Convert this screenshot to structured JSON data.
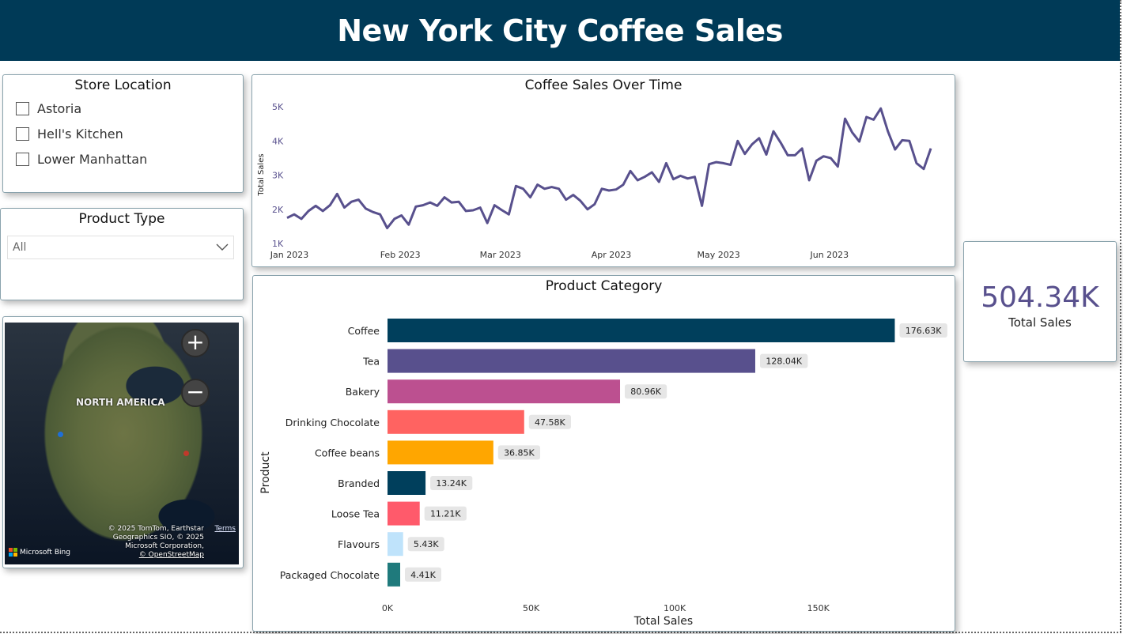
{
  "header": {
    "title": "New York City Coffee Sales"
  },
  "store_location": {
    "title": "Store Location",
    "items": [
      {
        "label": "Astoria",
        "checked": false
      },
      {
        "label": "Hell's Kitchen",
        "checked": false
      },
      {
        "label": "Lower Manhattan",
        "checked": false
      }
    ]
  },
  "product_type": {
    "title": "Product Type",
    "selected": "All"
  },
  "map": {
    "region_label": "NORTH AMERICA",
    "zoom_in": "+",
    "zoom_out": "−",
    "attribution_lines": [
      "© 2025 TomTom, Earthstar",
      "Geographics SIO, © 2025",
      "Microsoft Corporation,",
      "© OpenStreetMap"
    ],
    "terms": "Terms",
    "provider": "Microsoft Bing"
  },
  "kpi": {
    "value": "504.34K",
    "label": "Total Sales",
    "color": "#58508d"
  },
  "chart_data": [
    {
      "type": "line",
      "title": "Coffee Sales Over Time",
      "ylabel": "Total Sales",
      "xlabel": "",
      "ylim": [
        1000,
        5000
      ],
      "yticks": [
        "1K",
        "2K",
        "3K",
        "4K",
        "5K"
      ],
      "xticks": [
        "Jan 2023",
        "Feb 2023",
        "Mar 2023",
        "Apr 2023",
        "May 2023",
        "Jun 2023"
      ],
      "xlim": [
        "2023-01-01",
        "2023-06-30"
      ],
      "color": "#58508d",
      "grid": false,
      "points": [
        [
          "2023-01-01",
          1750
        ],
        [
          "2023-01-03",
          1850
        ],
        [
          "2023-01-05",
          1720
        ],
        [
          "2023-01-07",
          1950
        ],
        [
          "2023-01-09",
          2100
        ],
        [
          "2023-01-11",
          1950
        ],
        [
          "2023-01-13",
          2120
        ],
        [
          "2023-01-15",
          2450
        ],
        [
          "2023-01-17",
          2050
        ],
        [
          "2023-01-19",
          2220
        ],
        [
          "2023-01-21",
          2280
        ],
        [
          "2023-01-23",
          2020
        ],
        [
          "2023-01-25",
          1920
        ],
        [
          "2023-01-27",
          1850
        ],
        [
          "2023-01-29",
          1450
        ],
        [
          "2023-01-31",
          1720
        ],
        [
          "2023-02-02",
          1820
        ],
        [
          "2023-02-04",
          1550
        ],
        [
          "2023-02-06",
          2080
        ],
        [
          "2023-02-08",
          2120
        ],
        [
          "2023-02-10",
          2200
        ],
        [
          "2023-02-12",
          2100
        ],
        [
          "2023-02-14",
          2350
        ],
        [
          "2023-02-16",
          2200
        ],
        [
          "2023-02-18",
          2220
        ],
        [
          "2023-02-20",
          1950
        ],
        [
          "2023-02-22",
          1970
        ],
        [
          "2023-02-24",
          2050
        ],
        [
          "2023-02-26",
          1600
        ],
        [
          "2023-02-28",
          2120
        ],
        [
          "2023-03-02",
          1980
        ],
        [
          "2023-03-04",
          1850
        ],
        [
          "2023-03-06",
          2680
        ],
        [
          "2023-03-08",
          2600
        ],
        [
          "2023-03-10",
          2350
        ],
        [
          "2023-03-12",
          2720
        ],
        [
          "2023-03-14",
          2600
        ],
        [
          "2023-03-16",
          2650
        ],
        [
          "2023-03-18",
          2600
        ],
        [
          "2023-03-20",
          2280
        ],
        [
          "2023-03-22",
          2420
        ],
        [
          "2023-03-24",
          2250
        ],
        [
          "2023-03-26",
          2000
        ],
        [
          "2023-03-28",
          2150
        ],
        [
          "2023-03-30",
          2600
        ],
        [
          "2023-04-01",
          2550
        ],
        [
          "2023-04-03",
          2580
        ],
        [
          "2023-04-05",
          2720
        ],
        [
          "2023-04-07",
          3120
        ],
        [
          "2023-04-09",
          2850
        ],
        [
          "2023-04-11",
          2950
        ],
        [
          "2023-04-13",
          3080
        ],
        [
          "2023-04-15",
          2800
        ],
        [
          "2023-04-17",
          3350
        ],
        [
          "2023-04-19",
          2880
        ],
        [
          "2023-04-21",
          2980
        ],
        [
          "2023-04-23",
          2900
        ],
        [
          "2023-04-25",
          2950
        ],
        [
          "2023-04-27",
          2100
        ],
        [
          "2023-04-29",
          3320
        ],
        [
          "2023-05-01",
          3380
        ],
        [
          "2023-05-03",
          3350
        ],
        [
          "2023-05-05",
          3300
        ],
        [
          "2023-05-07",
          4000
        ],
        [
          "2023-05-09",
          3620
        ],
        [
          "2023-05-11",
          3900
        ],
        [
          "2023-05-13",
          4080
        ],
        [
          "2023-05-15",
          3600
        ],
        [
          "2023-05-17",
          4280
        ],
        [
          "2023-05-19",
          3950
        ],
        [
          "2023-05-21",
          3580
        ],
        [
          "2023-05-23",
          3580
        ],
        [
          "2023-05-25",
          3780
        ],
        [
          "2023-05-27",
          2850
        ],
        [
          "2023-05-29",
          3420
        ],
        [
          "2023-05-31",
          3550
        ],
        [
          "2023-06-02",
          3500
        ],
        [
          "2023-06-04",
          3250
        ],
        [
          "2023-06-06",
          4650
        ],
        [
          "2023-06-08",
          4250
        ],
        [
          "2023-06-10",
          3980
        ],
        [
          "2023-06-12",
          4700
        ],
        [
          "2023-06-14",
          4620
        ],
        [
          "2023-06-16",
          4950
        ],
        [
          "2023-06-18",
          4280
        ],
        [
          "2023-06-20",
          3750
        ],
        [
          "2023-06-22",
          4020
        ],
        [
          "2023-06-24",
          4000
        ],
        [
          "2023-06-26",
          3350
        ],
        [
          "2023-06-28",
          3180
        ],
        [
          "2023-06-30",
          3780
        ]
      ]
    },
    {
      "type": "bar",
      "orientation": "horizontal",
      "title": "Product Category",
      "xlabel": "Total Sales",
      "ylabel": "Product",
      "xlim": [
        0,
        190000
      ],
      "xticks": [
        {
          "value": 0,
          "label": "0K"
        },
        {
          "value": 50000,
          "label": "50K"
        },
        {
          "value": 100000,
          "label": "100K"
        },
        {
          "value": 150000,
          "label": "150K"
        }
      ],
      "categories": [
        "Coffee",
        "Tea",
        "Bakery",
        "Drinking Chocolate",
        "Coffee beans",
        "Branded",
        "Loose Tea",
        "Flavours",
        "Packaged Chocolate"
      ],
      "values": [
        176630,
        128040,
        80960,
        47580,
        36850,
        13240,
        11210,
        5430,
        4410
      ],
      "labels": [
        "176.63K",
        "128.04K",
        "80.96K",
        "47.58K",
        "36.85K",
        "13.24K",
        "11.21K",
        "5.43K",
        "4.41K"
      ],
      "colors": [
        "#003f5c",
        "#58508d",
        "#bc5090",
        "#ff6361",
        "#ffa600",
        "#003f5c",
        "#ff5a6b",
        "#bfe3fb",
        "#1f7a7c"
      ]
    }
  ]
}
